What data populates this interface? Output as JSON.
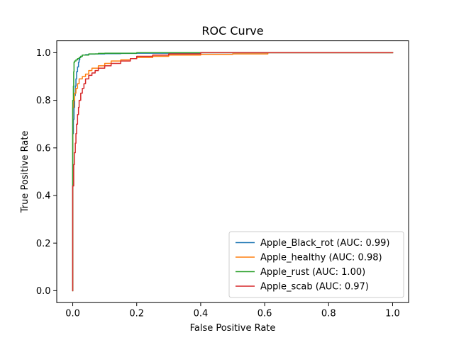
{
  "chart_data": {
    "type": "line",
    "title": "ROC Curve",
    "xlabel": "False Positive Rate",
    "ylabel": "True Positive Rate",
    "xlim": [
      -0.05,
      1.05
    ],
    "ylim": [
      -0.05,
      1.05
    ],
    "xticks": [
      0.0,
      0.2,
      0.4,
      0.6,
      0.8,
      1.0
    ],
    "yticks": [
      0.0,
      0.2,
      0.4,
      0.6,
      0.8,
      1.0
    ],
    "xtick_labels": [
      "0.0",
      "0.2",
      "0.4",
      "0.6",
      "0.8",
      "1.0"
    ],
    "ytick_labels": [
      "0.0",
      "0.2",
      "0.4",
      "0.6",
      "0.8",
      "1.0"
    ],
    "grid": false,
    "legend_position": "bottom-right",
    "series": [
      {
        "name": "Apple_Black_rot (AUC: 0.99)",
        "color": "#1f77b4",
        "x": [
          0.0,
          0.0,
          0.002,
          0.004,
          0.006,
          0.008,
          0.01,
          0.012,
          0.015,
          0.018,
          0.02,
          0.022,
          0.025,
          0.03,
          0.04,
          0.05,
          0.07,
          0.1,
          0.15,
          0.2,
          0.3,
          0.4,
          0.5,
          0.6,
          1.0
        ],
        "y": [
          0.0,
          0.55,
          0.66,
          0.72,
          0.77,
          0.82,
          0.86,
          0.89,
          0.92,
          0.94,
          0.96,
          0.97,
          0.98,
          0.985,
          0.99,
          0.992,
          0.994,
          0.995,
          0.996,
          0.997,
          0.998,
          0.999,
          1.0,
          1.0,
          1.0
        ]
      },
      {
        "name": "Apple_healthy (AUC: 0.98)",
        "color": "#ff7f0e",
        "x": [
          0.0,
          0.0,
          0.003,
          0.006,
          0.01,
          0.015,
          0.02,
          0.03,
          0.04,
          0.05,
          0.06,
          0.08,
          0.1,
          0.12,
          0.15,
          0.18,
          0.2,
          0.25,
          0.3,
          0.4,
          0.5,
          0.61,
          1.0
        ],
        "y": [
          0.0,
          0.72,
          0.77,
          0.8,
          0.83,
          0.85,
          0.87,
          0.89,
          0.9,
          0.91,
          0.925,
          0.935,
          0.945,
          0.955,
          0.965,
          0.97,
          0.975,
          0.98,
          0.985,
          0.99,
          0.993,
          0.995,
          1.0
        ]
      },
      {
        "name": "Apple_rust (AUC: 1.00)",
        "color": "#2ca02c",
        "x": [
          0.0,
          0.0,
          0.002,
          0.003,
          0.004,
          0.006,
          0.01,
          0.015,
          0.02,
          0.025,
          0.03,
          0.05,
          0.08,
          0.1,
          0.2,
          0.33,
          0.45,
          1.0
        ],
        "y": [
          0.0,
          0.58,
          0.8,
          0.86,
          0.92,
          0.96,
          0.965,
          0.97,
          0.975,
          0.98,
          0.985,
          0.99,
          0.995,
          0.997,
          0.998,
          1.0,
          1.0,
          1.0
        ]
      },
      {
        "name": "Apple_scab (AUC: 0.97)",
        "color": "#d62728",
        "x": [
          0.0,
          0.0,
          0.003,
          0.005,
          0.008,
          0.01,
          0.012,
          0.015,
          0.018,
          0.02,
          0.025,
          0.03,
          0.035,
          0.04,
          0.05,
          0.06,
          0.07,
          0.08,
          0.1,
          0.12,
          0.15,
          0.18,
          0.2,
          0.25,
          0.3,
          0.4,
          1.0
        ],
        "y": [
          0.0,
          0.1,
          0.44,
          0.53,
          0.58,
          0.62,
          0.66,
          0.7,
          0.74,
          0.77,
          0.8,
          0.83,
          0.85,
          0.87,
          0.89,
          0.905,
          0.915,
          0.925,
          0.935,
          0.945,
          0.955,
          0.965,
          0.975,
          0.985,
          0.99,
          0.995,
          1.0
        ]
      }
    ]
  }
}
